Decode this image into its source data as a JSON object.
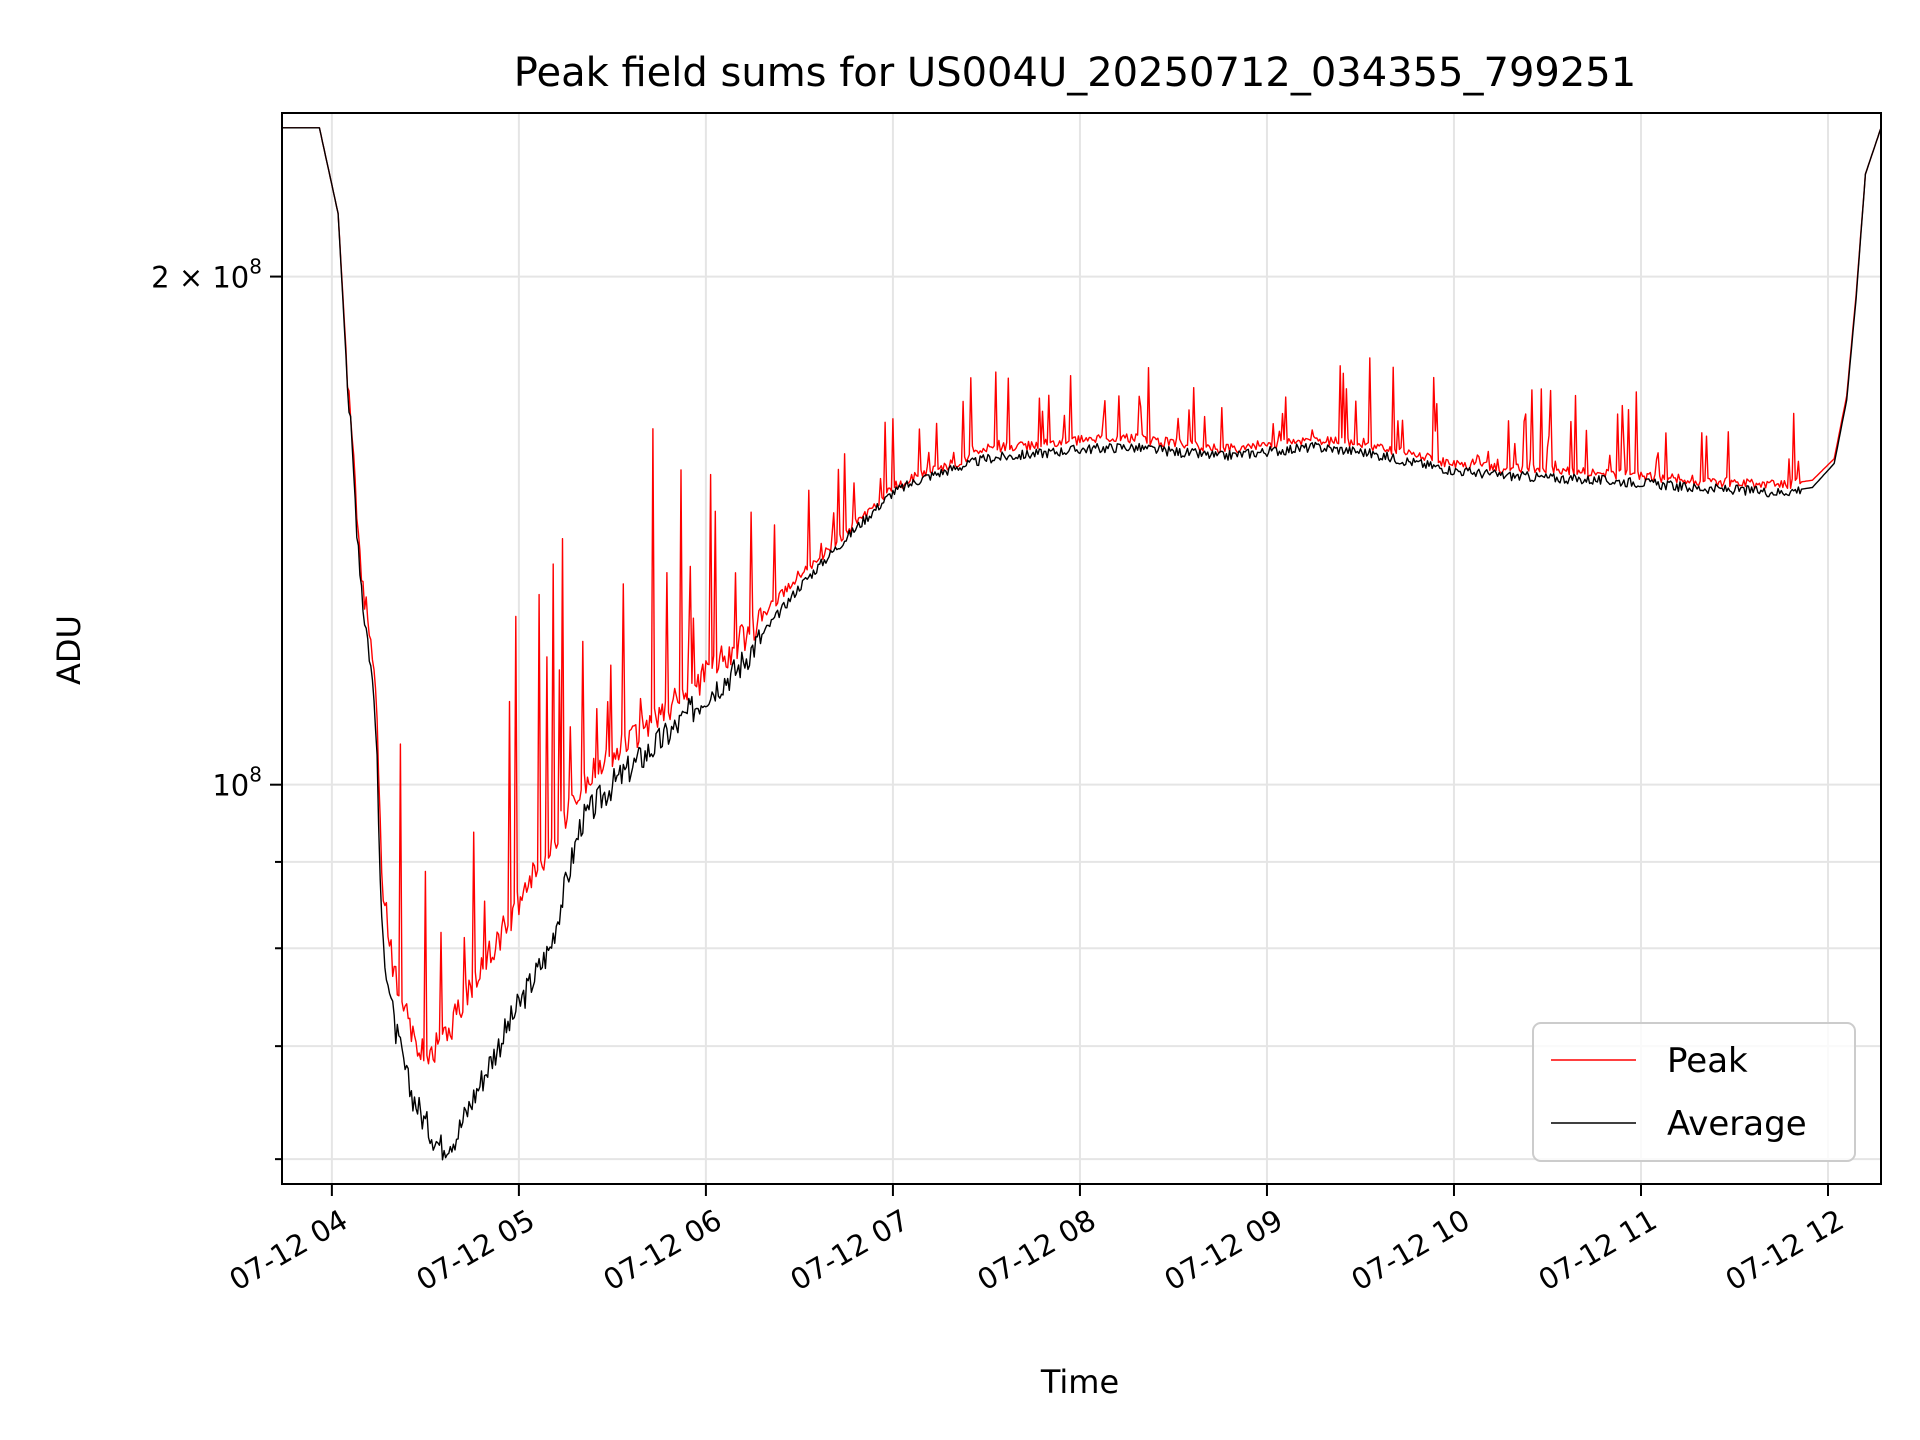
{
  "chart_data": {
    "type": "line",
    "title": "Peak field sums for US004U_20250712_034355_799251",
    "xlabel": "Time",
    "ylabel": "ADU",
    "yscale": "log",
    "grid": true,
    "legend_placement": "lower-right",
    "xlim": [
      "2025-07-12 03:44",
      "2025-07-12 12:17"
    ],
    "ylim": [
      58000000,
      250000000
    ],
    "x_ticks": [
      {
        "value": "2025-07-12 04:00",
        "label": "07-12 04"
      },
      {
        "value": "2025-07-12 05:00",
        "label": "07-12 05"
      },
      {
        "value": "2025-07-12 06:00",
        "label": "07-12 06"
      },
      {
        "value": "2025-07-12 07:00",
        "label": "07-12 07"
      },
      {
        "value": "2025-07-12 08:00",
        "label": "07-12 08"
      },
      {
        "value": "2025-07-12 09:00",
        "label": "07-12 09"
      },
      {
        "value": "2025-07-12 10:00",
        "label": "07-12 10"
      },
      {
        "value": "2025-07-12 11:00",
        "label": "07-12 11"
      },
      {
        "value": "2025-07-12 12:00",
        "label": "07-12 12"
      }
    ],
    "y_major_ticks": [
      {
        "value": 100000000,
        "base": "10",
        "exp": "8",
        "mantissa": ""
      },
      {
        "value": 200000000,
        "base": "10",
        "exp": "8",
        "mantissa": "2 × "
      }
    ],
    "y_minor_ticks": [
      60000000,
      70000000,
      80000000,
      90000000
    ],
    "series": [
      {
        "name": "Peak",
        "color": "#ff0000",
        "x": [
          "2025-07-12 03:44",
          "2025-07-12 03:56",
          "2025-07-12 04:02",
          "2025-07-12 04:05",
          "2025-07-12 04:08",
          "2025-07-12 04:10",
          "2025-07-12 04:12",
          "2025-07-12 04:14",
          "2025-07-12 04:16",
          "2025-07-12 04:20",
          "2025-07-12 04:25",
          "2025-07-12 04:30",
          "2025-07-12 04:35",
          "2025-07-12 04:40",
          "2025-07-12 04:45",
          "2025-07-12 04:50",
          "2025-07-12 04:55",
          "2025-07-12 05:00",
          "2025-07-12 05:10",
          "2025-07-12 05:20",
          "2025-07-12 05:30",
          "2025-07-12 05:40",
          "2025-07-12 05:50",
          "2025-07-12 06:00",
          "2025-07-12 06:10",
          "2025-07-12 06:20",
          "2025-07-12 06:30",
          "2025-07-12 06:40",
          "2025-07-12 06:50",
          "2025-07-12 07:00",
          "2025-07-12 07:10",
          "2025-07-12 07:20",
          "2025-07-12 07:30",
          "2025-07-12 07:45",
          "2025-07-12 08:00",
          "2025-07-12 08:15",
          "2025-07-12 08:30",
          "2025-07-12 08:45",
          "2025-07-12 09:00",
          "2025-07-12 09:15",
          "2025-07-12 09:30",
          "2025-07-12 09:45",
          "2025-07-12 10:00",
          "2025-07-12 10:15",
          "2025-07-12 10:30",
          "2025-07-12 10:45",
          "2025-07-12 11:00",
          "2025-07-12 11:15",
          "2025-07-12 11:30",
          "2025-07-12 11:45",
          "2025-07-12 11:55",
          "2025-07-12 12:02",
          "2025-07-12 12:06",
          "2025-07-12 12:09",
          "2025-07-12 12:12",
          "2025-07-12 12:17"
        ],
        "values": [
          245000000,
          245000000,
          218000000,
          175000000,
          145000000,
          130000000,
          125000000,
          115000000,
          88000000,
          77000000,
          72000000,
          69000000,
          70000000,
          73000000,
          76000000,
          79000000,
          82000000,
          85000000,
          92000000,
          100000000,
          104000000,
          108000000,
          112000000,
          116000000,
          121000000,
          127000000,
          133000000,
          138000000,
          144000000,
          150000000,
          153000000,
          155000000,
          158000000,
          159000000,
          160000000,
          160500000,
          159500000,
          158000000,
          159000000,
          160000000,
          159500000,
          157000000,
          155000000,
          154000000,
          153500000,
          153000000,
          152500000,
          151500000,
          151000000,
          150500000,
          151500000,
          156000000,
          170000000,
          195000000,
          230000000,
          245000000
        ]
      },
      {
        "name": "Average",
        "color": "#000000",
        "x": [
          "2025-07-12 03:44",
          "2025-07-12 03:56",
          "2025-07-12 04:02",
          "2025-07-12 04:05",
          "2025-07-12 04:08",
          "2025-07-12 04:10",
          "2025-07-12 04:12",
          "2025-07-12 04:14",
          "2025-07-12 04:16",
          "2025-07-12 04:20",
          "2025-07-12 04:25",
          "2025-07-12 04:30",
          "2025-07-12 04:35",
          "2025-07-12 04:40",
          "2025-07-12 04:45",
          "2025-07-12 04:50",
          "2025-07-12 04:55",
          "2025-07-12 05:00",
          "2025-07-12 05:10",
          "2025-07-12 05:20",
          "2025-07-12 05:30",
          "2025-07-12 05:40",
          "2025-07-12 05:50",
          "2025-07-12 06:00",
          "2025-07-12 06:10",
          "2025-07-12 06:20",
          "2025-07-12 06:30",
          "2025-07-12 06:40",
          "2025-07-12 06:50",
          "2025-07-12 07:00",
          "2025-07-12 07:10",
          "2025-07-12 07:20",
          "2025-07-12 07:30",
          "2025-07-12 07:45",
          "2025-07-12 08:00",
          "2025-07-12 08:15",
          "2025-07-12 08:30",
          "2025-07-12 08:45",
          "2025-07-12 09:00",
          "2025-07-12 09:15",
          "2025-07-12 09:30",
          "2025-07-12 09:45",
          "2025-07-12 10:00",
          "2025-07-12 10:15",
          "2025-07-12 10:30",
          "2025-07-12 10:45",
          "2025-07-12 11:00",
          "2025-07-12 11:15",
          "2025-07-12 11:30",
          "2025-07-12 11:45",
          "2025-07-12 11:55",
          "2025-07-12 12:02",
          "2025-07-12 12:06",
          "2025-07-12 12:09",
          "2025-07-12 12:12",
          "2025-07-12 12:17"
        ],
        "values": [
          245000000,
          245000000,
          218000000,
          173000000,
          143000000,
          128000000,
          120000000,
          110000000,
          82000000,
          72000000,
          66000000,
          63000000,
          61000000,
          62000000,
          65000000,
          68000000,
          71000000,
          74000000,
          80000000,
          95000000,
          100000000,
          104000000,
          108000000,
          113000000,
          117000000,
          124000000,
          131000000,
          137000000,
          143000000,
          149000000,
          152000000,
          154000000,
          156000000,
          157000000,
          158000000,
          158500000,
          157500000,
          156500000,
          157500000,
          158500000,
          157500000,
          155500000,
          153500000,
          152500000,
          152000000,
          151500000,
          151000000,
          150000000,
          149500000,
          149000000,
          150000000,
          155000000,
          169000000,
          194000000,
          230000000,
          245000000
        ]
      }
    ]
  }
}
